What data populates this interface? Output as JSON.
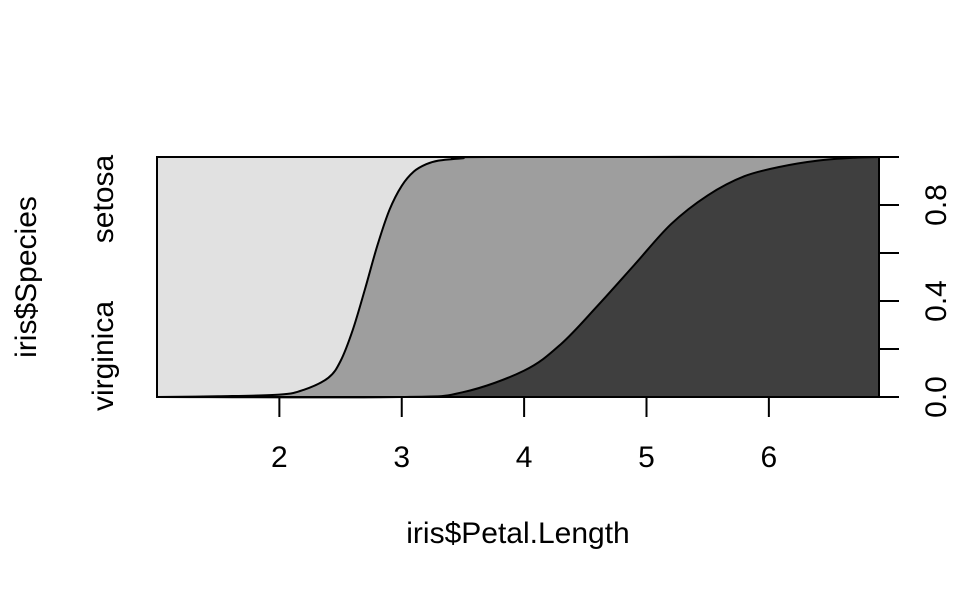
{
  "chart_data": {
    "type": "area",
    "subtype": "conditional-density",
    "title": "",
    "xlabel": "iris$Petal.Length",
    "ylabel": "iris$Species",
    "xlim": [
      1.0,
      6.9
    ],
    "ylim": [
      0,
      1
    ],
    "x_ticks": [
      2,
      3,
      4,
      5,
      6
    ],
    "right_axis_ticks": [
      0.0,
      0.2,
      0.4,
      0.6,
      0.8,
      1.0
    ],
    "right_axis_labels": [
      "0.0",
      "0.4",
      "0.8"
    ],
    "left_axis_labels": [
      "virginica",
      "setosa"
    ],
    "series": [
      {
        "colour": "#3f3f3f",
        "x": [
          1.0,
          3.0,
          3.5,
          4.0,
          4.3,
          4.6,
          4.9,
          5.2,
          5.5,
          5.8,
          6.1,
          6.4,
          6.7,
          6.9
        ],
        "upper": [
          0.0,
          0.0,
          0.02,
          0.11,
          0.22,
          0.38,
          0.55,
          0.72,
          0.84,
          0.92,
          0.96,
          0.985,
          0.997,
          1.0
        ]
      },
      {
        "colour": "#9e9e9e",
        "x": [
          1.0,
          1.5,
          2.0,
          2.2,
          2.4,
          2.5,
          2.6,
          2.7,
          2.8,
          2.9,
          3.0,
          3.1,
          3.2,
          3.3,
          3.5,
          3.7,
          6.9
        ],
        "upper": [
          0.0,
          0.003,
          0.01,
          0.03,
          0.08,
          0.15,
          0.28,
          0.45,
          0.63,
          0.78,
          0.88,
          0.94,
          0.97,
          0.985,
          0.995,
          1.0,
          1.0
        ]
      },
      {
        "colour": "#e1e1e1",
        "x": [
          1.0,
          6.9
        ],
        "upper": [
          1.0,
          1.0
        ]
      }
    ]
  }
}
